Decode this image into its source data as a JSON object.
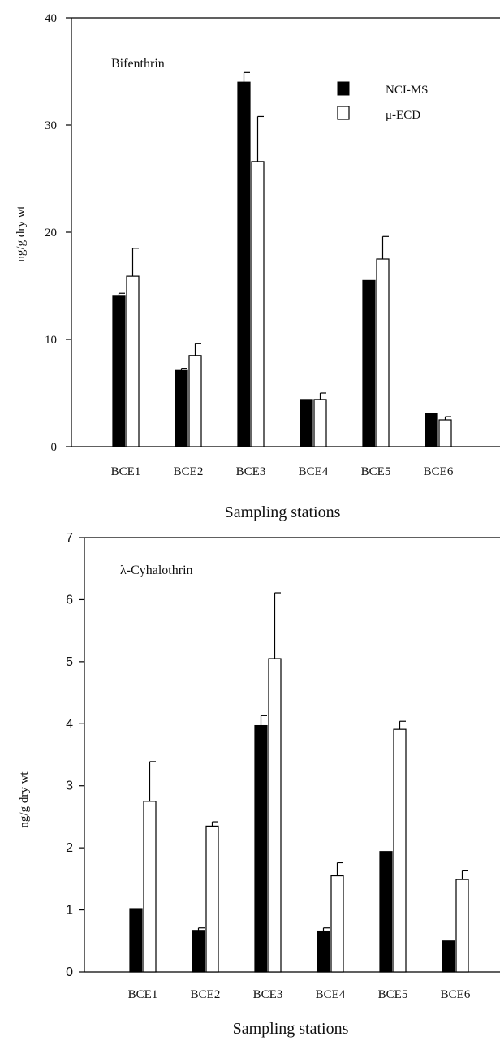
{
  "colors": {
    "solid_fill": "#000000",
    "open_fill": "#ffffff",
    "stroke": "#000000"
  },
  "chart_data": [
    {
      "type": "bar",
      "title": "Bifenthrin",
      "xlabel": "Sampling stations",
      "ylabel": "ng/g dry wt",
      "ylim": [
        0,
        40
      ],
      "yticks": [
        "0",
        "10",
        "20",
        "30",
        "40"
      ],
      "categories": [
        "BCE1",
        "BCE2",
        "BCE3",
        "BCE4",
        "BCE5",
        "BCE6"
      ],
      "legend": "top-right",
      "series": [
        {
          "name": "NCI-MS",
          "style": "solid",
          "values": [
            14.1,
            7.1,
            34.0,
            4.4,
            15.5,
            3.1
          ],
          "errors": [
            0.2,
            0.2,
            0.9,
            0.0,
            0.0,
            0.0
          ]
        },
        {
          "name": "μ-ECD",
          "style": "open",
          "values": [
            15.9,
            8.5,
            26.6,
            4.4,
            17.5,
            2.5
          ],
          "errors": [
            2.6,
            1.1,
            4.2,
            0.6,
            2.1,
            0.3
          ]
        }
      ]
    },
    {
      "type": "bar",
      "title": "λ-Cyhalothrin",
      "xlabel": "Sampling stations",
      "ylabel": "ng/g dry wt",
      "ylim": [
        0,
        7
      ],
      "yticks": [
        "0",
        "1",
        "2",
        "3",
        "4",
        "5",
        "6",
        "7"
      ],
      "categories": [
        "BCE1",
        "BCE2",
        "BCE3",
        "BCE4",
        "BCE5",
        "BCE6"
      ],
      "series": [
        {
          "name": "NCI-MS",
          "style": "solid",
          "values": [
            1.02,
            0.67,
            3.97,
            0.66,
            1.94,
            0.5
          ],
          "errors": [
            0.0,
            0.04,
            0.16,
            0.05,
            0.0,
            0.0
          ]
        },
        {
          "name": "μ-ECD",
          "style": "open",
          "values": [
            2.75,
            2.35,
            5.05,
            1.55,
            3.91,
            1.49
          ],
          "errors": [
            0.64,
            0.07,
            1.06,
            0.21,
            0.13,
            0.14
          ]
        }
      ]
    }
  ]
}
